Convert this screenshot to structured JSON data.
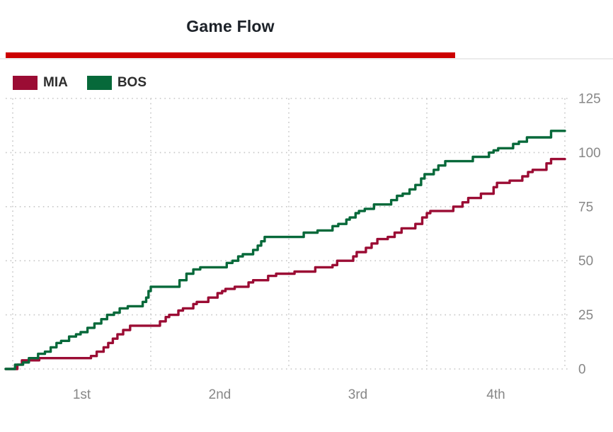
{
  "header": {
    "title": "Game Flow",
    "accent_color": "#CC0000",
    "divider_color": "#EBEBEB"
  },
  "legend": [
    {
      "label": "MIA",
      "color": "#9B0C34"
    },
    {
      "label": "BOS",
      "color": "#07693A"
    }
  ],
  "chart_data": {
    "type": "line",
    "subtype": "step",
    "title": "Game Flow",
    "x_unit": "game time (minutes, 4 quarters)",
    "x_range_min": [
      0,
      48
    ],
    "x_gridlines_min": [
      0,
      12,
      24,
      36,
      48
    ],
    "x_tick_labels": [
      "1st",
      "2nd",
      "3rd",
      "4th"
    ],
    "x_tick_positions_min": [
      6,
      18,
      30,
      42
    ],
    "y_ticks": [
      0,
      25,
      50,
      75,
      100,
      125
    ],
    "ylim": [
      0,
      125
    ],
    "y_axis_side": "right",
    "grid": "dotted",
    "grid_color": "#C6C6C6",
    "tick_text_color": "#878787",
    "legend_position": "top-left",
    "series": [
      {
        "name": "MIA",
        "color": "#9B0C34",
        "end_value": 97,
        "points": [
          [
            0,
            0
          ],
          [
            0.4,
            2
          ],
          [
            0.8,
            4
          ],
          [
            2.3,
            5
          ],
          [
            6.8,
            6
          ],
          [
            7.3,
            8
          ],
          [
            7.9,
            10
          ],
          [
            8.3,
            12
          ],
          [
            8.7,
            14
          ],
          [
            9.1,
            16
          ],
          [
            9.6,
            18
          ],
          [
            10.2,
            20
          ],
          [
            12.8,
            22
          ],
          [
            13.3,
            24
          ],
          [
            13.6,
            25
          ],
          [
            14.4,
            27
          ],
          [
            14.8,
            28
          ],
          [
            15.7,
            30
          ],
          [
            16.0,
            31
          ],
          [
            17.0,
            33
          ],
          [
            17.8,
            35
          ],
          [
            18.2,
            36
          ],
          [
            18.5,
            37
          ],
          [
            19.3,
            38
          ],
          [
            20.5,
            40
          ],
          [
            20.9,
            41
          ],
          [
            22.2,
            43
          ],
          [
            22.9,
            44
          ],
          [
            24.5,
            45
          ],
          [
            26.3,
            47
          ],
          [
            27.8,
            48
          ],
          [
            28.2,
            50
          ],
          [
            29.6,
            52
          ],
          [
            29.9,
            54
          ],
          [
            30.7,
            56
          ],
          [
            31.2,
            58
          ],
          [
            31.7,
            60
          ],
          [
            32.6,
            61
          ],
          [
            33.2,
            63
          ],
          [
            33.8,
            65
          ],
          [
            35.0,
            67
          ],
          [
            35.6,
            70
          ],
          [
            36.0,
            72
          ],
          [
            36.3,
            73
          ],
          [
            38.3,
            75
          ],
          [
            39.1,
            77
          ],
          [
            39.6,
            79
          ],
          [
            40.7,
            81
          ],
          [
            41.8,
            84
          ],
          [
            42.1,
            86
          ],
          [
            43.2,
            87
          ],
          [
            44.3,
            89
          ],
          [
            44.8,
            91
          ],
          [
            45.2,
            92
          ],
          [
            46.4,
            95
          ],
          [
            46.8,
            97
          ],
          [
            48,
            97
          ]
        ]
      },
      {
        "name": "BOS",
        "color": "#07693A",
        "end_value": 110,
        "points": [
          [
            0,
            0
          ],
          [
            0.2,
            2
          ],
          [
            0.9,
            3
          ],
          [
            1.4,
            5
          ],
          [
            2.2,
            7
          ],
          [
            2.8,
            8
          ],
          [
            3.3,
            10
          ],
          [
            3.8,
            12
          ],
          [
            4.2,
            13
          ],
          [
            4.9,
            15
          ],
          [
            5.5,
            16
          ],
          [
            5.9,
            17
          ],
          [
            6.5,
            19
          ],
          [
            7.1,
            21
          ],
          [
            7.7,
            23
          ],
          [
            8.2,
            25
          ],
          [
            8.8,
            26
          ],
          [
            9.3,
            28
          ],
          [
            10.0,
            29
          ],
          [
            11.3,
            31
          ],
          [
            11.6,
            33
          ],
          [
            11.8,
            36
          ],
          [
            12.0,
            38
          ],
          [
            14.5,
            41
          ],
          [
            15.1,
            44
          ],
          [
            15.7,
            46
          ],
          [
            16.3,
            47
          ],
          [
            18.6,
            49
          ],
          [
            19.1,
            50
          ],
          [
            19.6,
            52
          ],
          [
            20.0,
            53
          ],
          [
            20.9,
            55
          ],
          [
            21.3,
            57
          ],
          [
            21.6,
            59
          ],
          [
            21.9,
            61
          ],
          [
            25.3,
            63
          ],
          [
            26.5,
            64
          ],
          [
            27.8,
            66
          ],
          [
            28.3,
            67
          ],
          [
            29.0,
            69
          ],
          [
            29.3,
            70
          ],
          [
            29.8,
            72
          ],
          [
            30.1,
            73
          ],
          [
            30.6,
            74
          ],
          [
            31.4,
            76
          ],
          [
            32.9,
            78
          ],
          [
            33.4,
            80
          ],
          [
            33.9,
            81
          ],
          [
            34.5,
            83
          ],
          [
            35.0,
            85
          ],
          [
            35.5,
            88
          ],
          [
            35.8,
            90
          ],
          [
            36.6,
            92
          ],
          [
            37.0,
            94
          ],
          [
            37.6,
            96
          ],
          [
            40.0,
            98
          ],
          [
            41.4,
            100
          ],
          [
            41.8,
            101
          ],
          [
            42.2,
            102
          ],
          [
            43.5,
            104
          ],
          [
            44.0,
            105
          ],
          [
            44.7,
            107
          ],
          [
            46.8,
            110
          ],
          [
            48,
            110
          ]
        ]
      }
    ]
  }
}
